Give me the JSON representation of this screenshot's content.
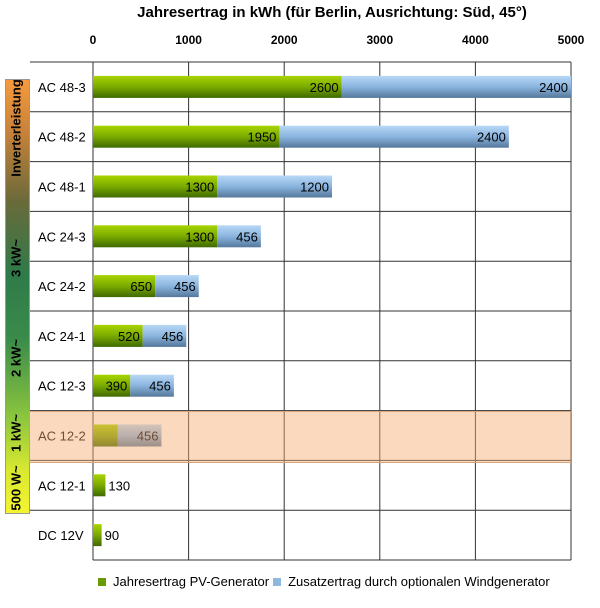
{
  "chart_data": {
    "type": "bar",
    "orientation": "horizontal",
    "stacked": true,
    "title": "Jahresertrag in kWh (für Berlin, Ausrichtung: Süd, 45°)",
    "xlim": [
      0,
      5000
    ],
    "xticks": [
      "0",
      "1000",
      "2000",
      "3000",
      "4000",
      "5000"
    ],
    "grid": true,
    "legend_position": "bottom",
    "categories": [
      "AC 48-3",
      "AC 48-2",
      "AC 48-1",
      "AC 24-3",
      "AC 24-2",
      "AC 24-1",
      "AC 12-3",
      "AC 12-2",
      "AC 12-1",
      "DC 12V"
    ],
    "series": [
      {
        "name": "Jahresertrag PV-Generator",
        "color": "#6a9a00",
        "values": [
          2600,
          1950,
          1300,
          1300,
          650,
          520,
          390,
          260,
          130,
          90
        ]
      },
      {
        "name": "Zusatzertrag durch optionalen Windgenerator",
        "color": "#8fb8e0",
        "values": [
          2400,
          2400,
          1200,
          456,
          456,
          456,
          456,
          456,
          null,
          null
        ]
      }
    ],
    "highlighted_category": "AC 12-2",
    "side_scale": {
      "title": "Inverterleistung",
      "labels": [
        "3 kW~",
        "2 kW~",
        "1 kW~",
        "500 W~"
      ]
    }
  }
}
